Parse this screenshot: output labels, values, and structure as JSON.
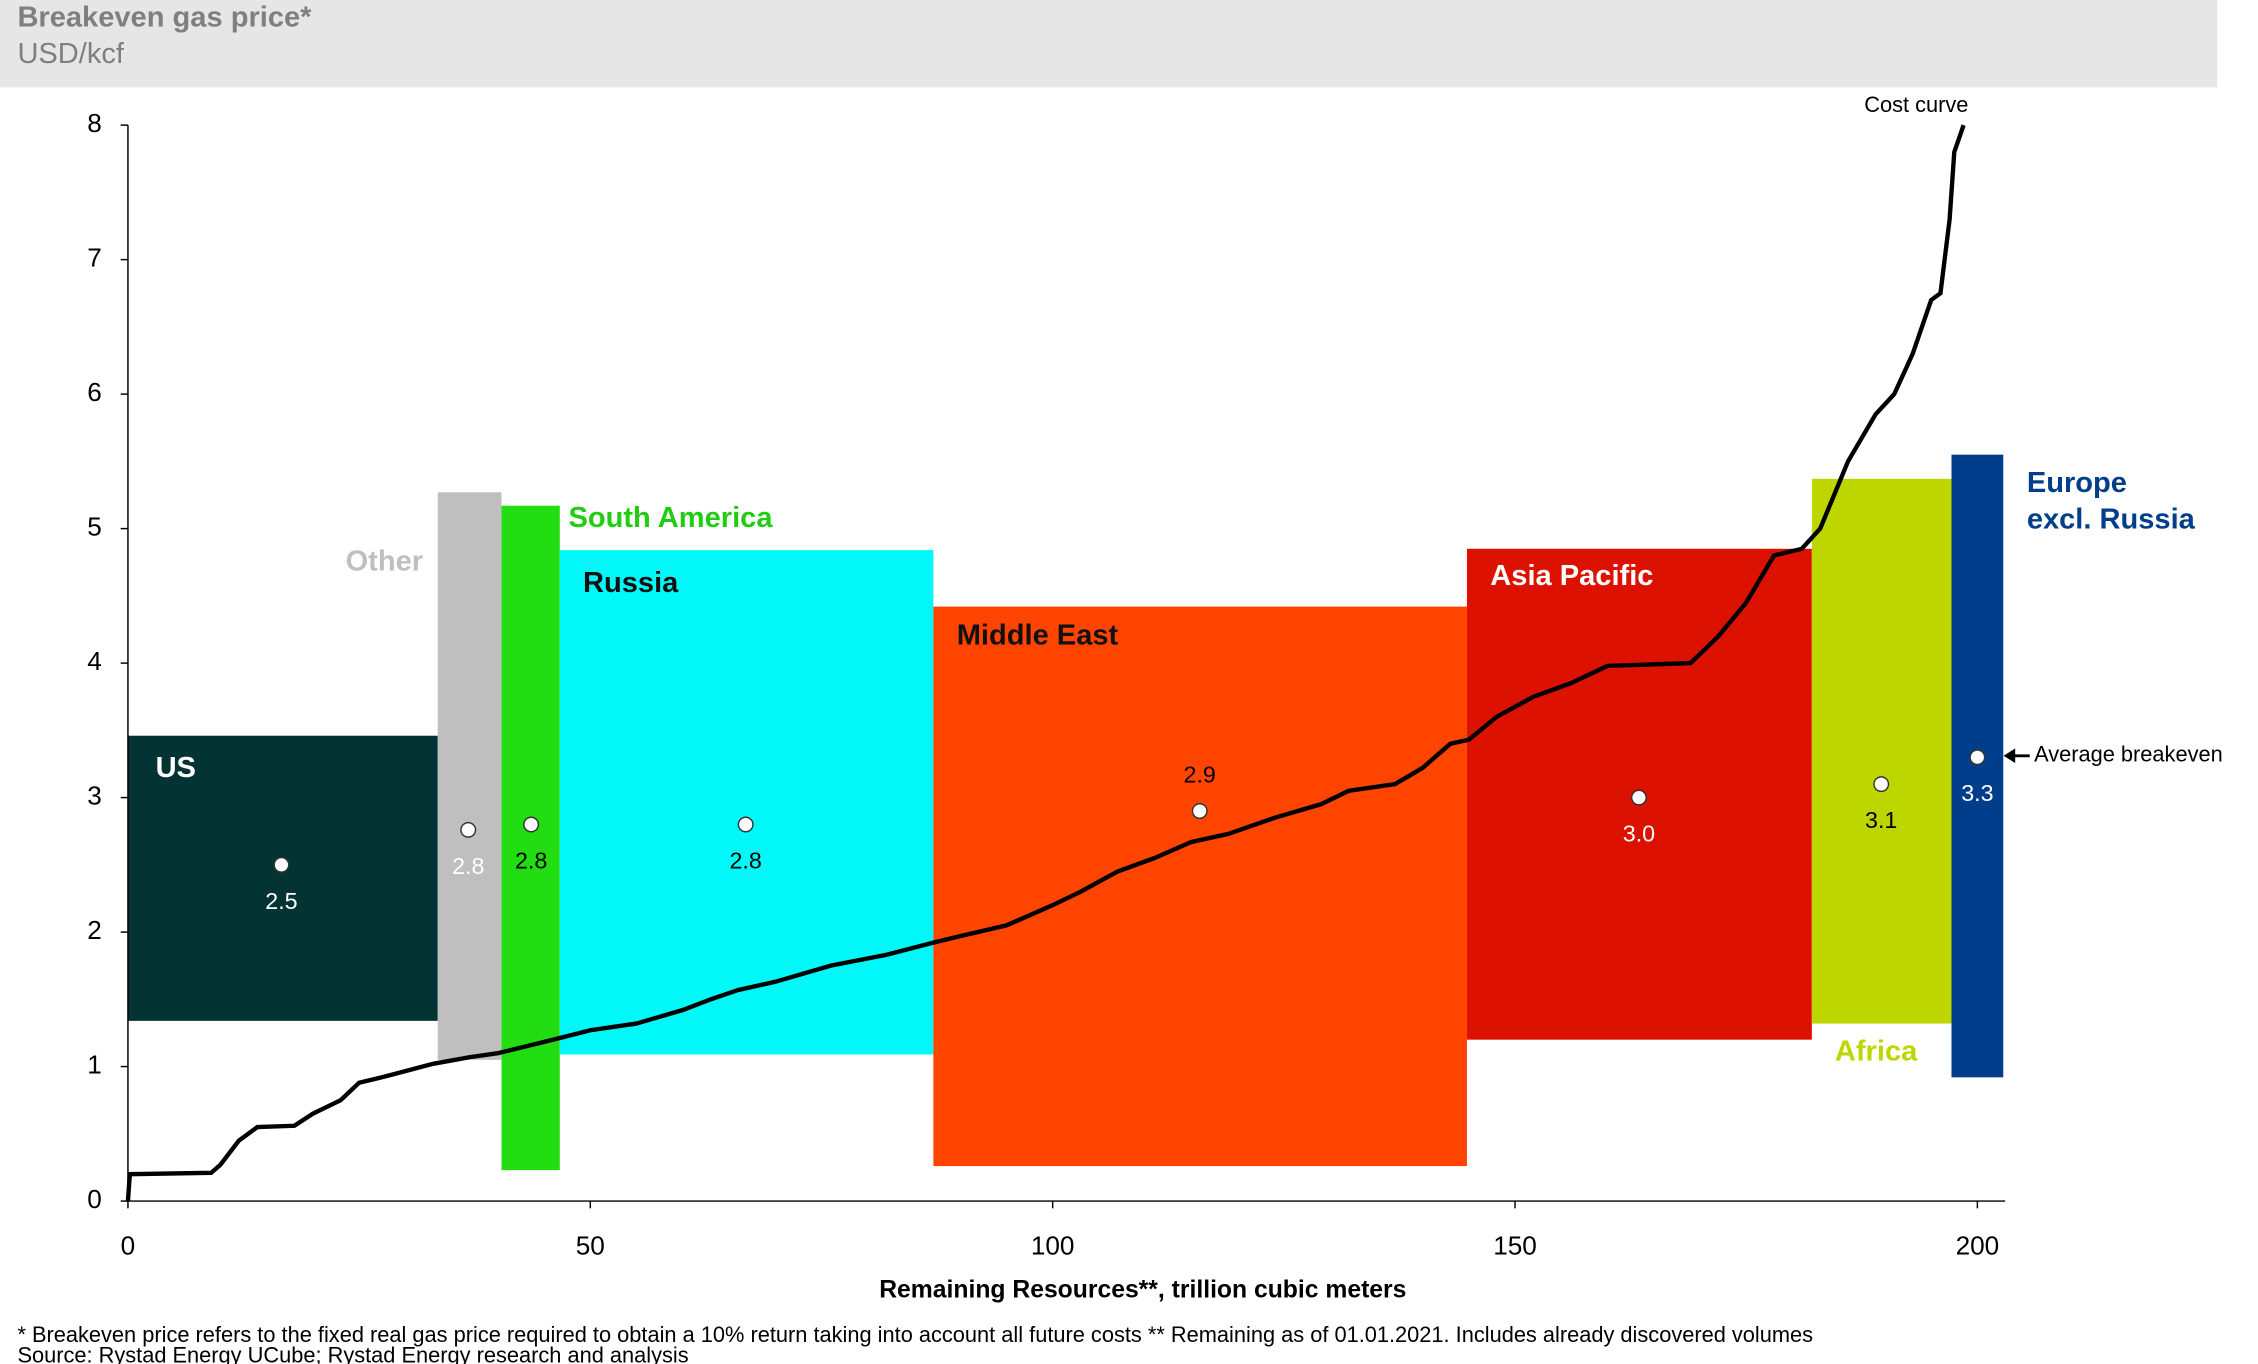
{
  "chart_data": {
    "type": "cost-curve",
    "title": "Breakeven gas price*",
    "subtitle": "USD/kcf",
    "x_label": "Remaining Resources**, trillion cubic meters",
    "xlim": [
      0,
      203
    ],
    "ylim": [
      0,
      8
    ],
    "xticks": [
      0,
      50,
      100,
      150,
      200
    ],
    "yticks": [
      0,
      1,
      2,
      3,
      4,
      5,
      6,
      7,
      8
    ],
    "regions": [
      {
        "name": "US",
        "color": "#033333",
        "label_color": "#ffffff",
        "x_start": 0,
        "x_end": 33.5,
        "low": 1.34,
        "high": 3.46,
        "avg_x": 16.6,
        "avg": 2.5,
        "value_label": "2.5"
      },
      {
        "name": "Other",
        "color": "#bfbfbf",
        "label_color": "#bfbfbf",
        "x_start": 33.5,
        "x_end": 40.4,
        "low": 1.05,
        "high": 5.27,
        "avg_x": 36.8,
        "avg": 2.76,
        "value_label": "2.8"
      },
      {
        "name": "South America",
        "color": "#22dd11",
        "label_color": "#22cc11",
        "x_start": 40.4,
        "x_end": 46.7,
        "low": 0.23,
        "high": 5.17,
        "avg_x": 43.6,
        "avg": 2.8,
        "value_label": "2.8"
      },
      {
        "name": "Russia",
        "color": "#00f8f8",
        "label_color": "#111111",
        "x_start": 46.7,
        "x_end": 87.1,
        "low": 1.09,
        "high": 4.84,
        "avg_x": 66.8,
        "avg": 2.8,
        "value_label": "2.8"
      },
      {
        "name": "Middle East",
        "color": "#ff4400",
        "label_color": "#111111",
        "x_start": 87.1,
        "x_end": 144.8,
        "low": 0.26,
        "high": 4.42,
        "avg_x": 115.9,
        "avg": 2.9,
        "value_label": "2.9"
      },
      {
        "name": "Asia Pacific",
        "color": "#dd1100",
        "label_color": "#ffffff",
        "x_start": 144.8,
        "x_end": 182.1,
        "low": 1.2,
        "high": 4.85,
        "avg_x": 163.4,
        "avg": 3.0,
        "value_label": "3.0"
      },
      {
        "name": "Africa",
        "color": "#bdd600",
        "label_color": "#bdd600",
        "x_start": 182.1,
        "x_end": 197.2,
        "low": 1.32,
        "high": 5.37,
        "avg_x": 189.6,
        "avg": 3.1,
        "value_label": "3.1"
      },
      {
        "name": "Europe\nexcl. Russia",
        "color": "#003e8c",
        "label_color": "#003e8c",
        "x_start": 197.2,
        "x_end": 202.8,
        "low": 0.92,
        "high": 5.55,
        "avg_x": 200,
        "avg": 3.3,
        "value_label": "3.3"
      }
    ],
    "cost_curve": {
      "name": "Cost curve",
      "color": "#000000",
      "x": [
        0,
        0.2,
        9,
        10,
        12,
        14,
        18,
        20,
        23,
        25,
        28,
        33,
        37,
        40,
        46,
        50,
        55,
        60,
        63,
        66,
        70,
        76,
        82,
        87,
        90,
        95,
        100,
        103,
        107,
        111,
        115,
        119,
        124,
        129,
        132,
        137,
        140,
        143,
        145,
        148,
        152,
        156,
        160,
        169,
        172,
        175,
        178,
        181,
        183,
        186,
        189,
        191,
        193,
        195,
        196,
        197,
        197.5,
        198,
        198.5
      ],
      "y": [
        0,
        0.2,
        0.21,
        0.27,
        0.45,
        0.55,
        0.56,
        0.65,
        0.75,
        0.88,
        0.93,
        1.02,
        1.07,
        1.1,
        1.2,
        1.27,
        1.32,
        1.42,
        1.5,
        1.57,
        1.63,
        1.75,
        1.83,
        1.92,
        1.97,
        2.05,
        2.2,
        2.3,
        2.45,
        2.55,
        2.67,
        2.73,
        2.85,
        2.95,
        3.05,
        3.1,
        3.22,
        3.4,
        3.43,
        3.6,
        3.75,
        3.85,
        3.98,
        4.0,
        4.2,
        4.45,
        4.8,
        4.85,
        5.0,
        5.5,
        5.85,
        6.0,
        6.3,
        6.7,
        6.75,
        7.3,
        7.8,
        7.9,
        8
      ]
    },
    "annotation": "Average breakeven",
    "footnote": "* Breakeven price refers to the fixed real gas price required to obtain a 10% return taking into account all future costs ** Remaining as of 01.01.2021. Includes already discovered volumes",
    "source": "Source: Rystad Energy UCube; Rystad Energy research and analysis"
  }
}
